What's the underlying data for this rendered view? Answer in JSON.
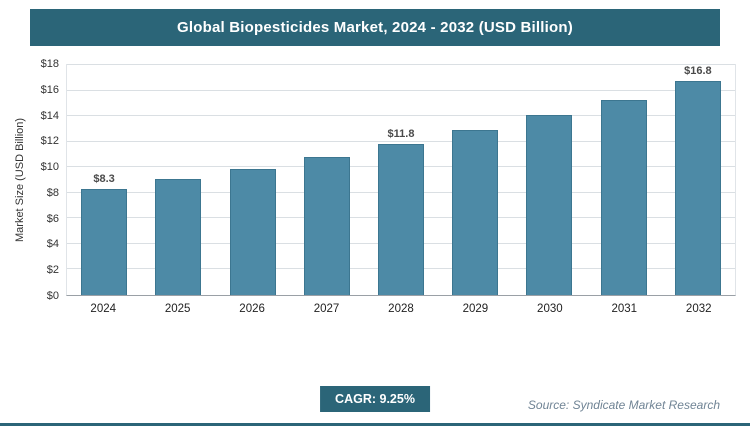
{
  "header": {
    "title": "Global Biopesticides Market, 2024 - 2032 (USD Billion)"
  },
  "chart_data": {
    "type": "bar",
    "title": "Global Biopesticides Market, 2024 - 2032 (USD Billion)",
    "categories": [
      "2024",
      "2025",
      "2026",
      "2027",
      "2028",
      "2029",
      "2030",
      "2031",
      "2032"
    ],
    "values": [
      8.3,
      9.1,
      9.9,
      10.8,
      11.8,
      12.9,
      14.1,
      15.3,
      16.8
    ],
    "value_labels": [
      "$8.3",
      "",
      "",
      "",
      "$11.8",
      "",
      "",
      "",
      "$16.8"
    ],
    "xlabel": "",
    "ylabel": "Market Size (USD Billion)",
    "ylim": [
      0,
      18
    ],
    "ytick_values": [
      0,
      2,
      4,
      6,
      8,
      10,
      12,
      14,
      16,
      18
    ],
    "ytick_labels": [
      "$0",
      "$2",
      "$4",
      "$6",
      "$8",
      "$10",
      "$12",
      "$14",
      "$16",
      "$18"
    ],
    "grid": true,
    "legend": false
  },
  "footer": {
    "cagr_label": "CAGR: 9.25%",
    "source": "Source: Syndicate Market Research"
  },
  "colors": {
    "header_bg": "#2b6578",
    "bar_fill": "#4d8aa6",
    "bar_border": "#3c7690",
    "accent": "#2b6578"
  }
}
